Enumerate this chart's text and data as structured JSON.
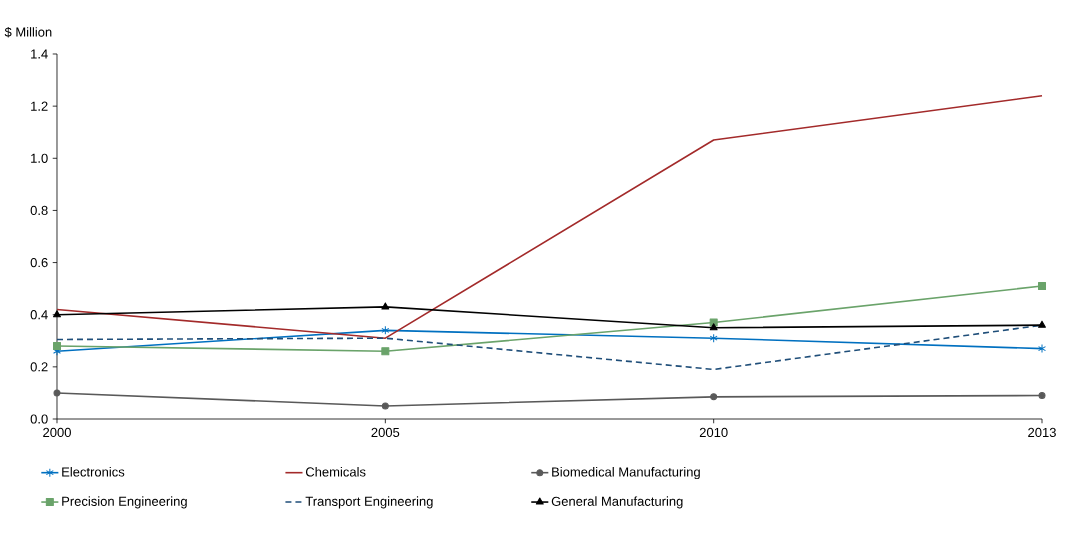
{
  "chart_data": {
    "type": "line",
    "ylabel": "$ Million",
    "categories": [
      "2000",
      "2005",
      "2010",
      "2013"
    ],
    "ylim": [
      0,
      1.4
    ],
    "yticks": [
      {
        "value": 0,
        "label": "0.0"
      },
      0.2,
      0.4,
      0.6,
      0.8,
      {
        "value": 1.0,
        "label": "1.0"
      },
      1.2,
      1.4
    ],
    "grid": false,
    "legend": "bottom",
    "series": [
      {
        "name": "Electronics",
        "color": "#0070c0",
        "marker": "cross",
        "line_style": "solid",
        "values": [
          0.26,
          0.34,
          0.31,
          0.27
        ]
      },
      {
        "name": "Chemicals",
        "color": "#a32a2a",
        "marker": "none",
        "line_style": "solid",
        "values": [
          0.42,
          0.31,
          1.07,
          1.24
        ]
      },
      {
        "name": "Biomedical Manufacturing",
        "color": "#595959",
        "marker": "circle",
        "line_style": "solid",
        "values": [
          0.1,
          0.05,
          0.085,
          0.09
        ]
      },
      {
        "name": "Precision Engineering",
        "color": "#6aa36a",
        "marker": "square",
        "line_style": "solid",
        "values": [
          0.28,
          0.26,
          0.37,
          0.51
        ]
      },
      {
        "name": "Transport Engineering",
        "color": "#1f4e79",
        "marker": "none",
        "line_style": "dashed",
        "values": [
          0.305,
          0.31,
          0.19,
          0.36
        ]
      },
      {
        "name": "General Manufacturing",
        "color": "#000000",
        "marker": "triangle",
        "line_style": "solid",
        "values": [
          0.4,
          0.43,
          0.35,
          0.36
        ]
      }
    ]
  }
}
